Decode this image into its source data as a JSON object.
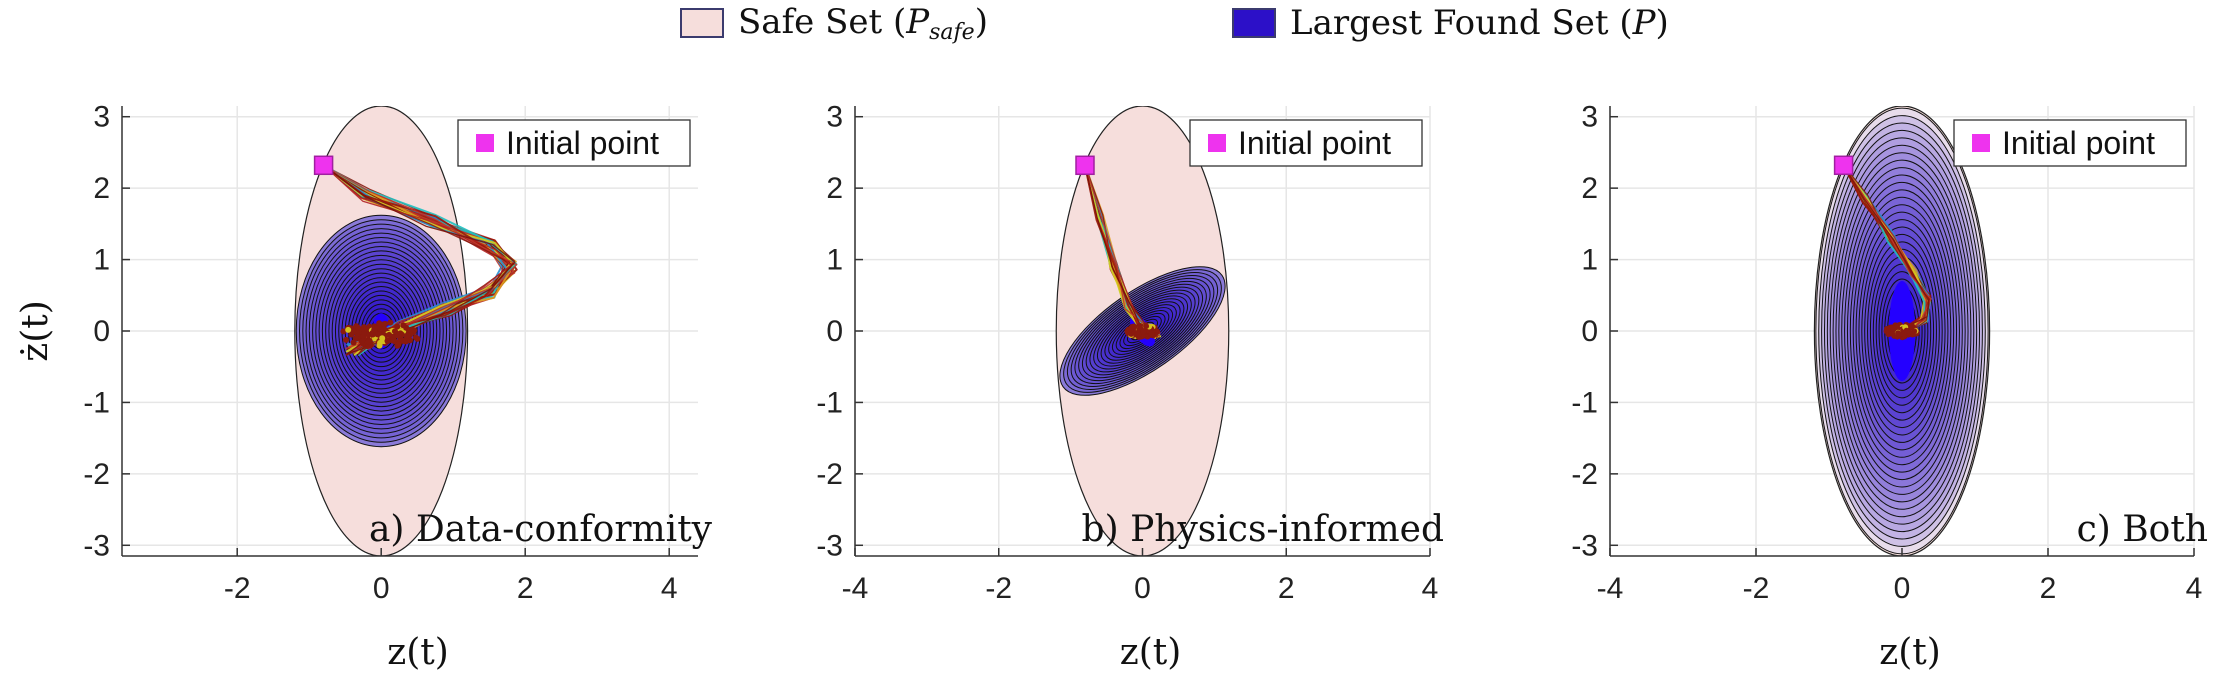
{
  "legend": {
    "safe_set_label": "Safe Set",
    "safe_set_symbol": "P",
    "safe_set_subscript": "safe",
    "found_set_label": "Largest Found Set",
    "found_set_symbol": "P",
    "safe_color": "#f6dedc",
    "found_color": "#2c10c8"
  },
  "chart_data": [
    {
      "type": "scatter",
      "panel_label": "a) Data-conformity",
      "xlabel": "z(t)",
      "ylabel": "ż(t)",
      "xlim": [
        -3.6,
        4.4
      ],
      "ylim": [
        -3.15,
        3.15
      ],
      "xticks": [
        -2,
        0,
        2,
        4
      ],
      "yticks": [
        -3,
        -2,
        -1,
        0,
        1,
        2,
        3
      ],
      "grid": true,
      "legend_position": "top-right",
      "legend_entry": "Initial point",
      "initial_point": [
        -0.8,
        2.32
      ],
      "safe_set": {
        "center": [
          0,
          0
        ],
        "rx": 1.2,
        "ry": 3.15,
        "tilt_deg": 0
      },
      "found_set": {
        "center": [
          0,
          0
        ],
        "rx": 1.18,
        "ry": 1.62,
        "tilt_deg": 0,
        "level_sets": 26
      },
      "trajectory": [
        [
          -0.8,
          2.32
        ],
        [
          -0.2,
          1.9
        ],
        [
          0.7,
          1.55
        ],
        [
          1.5,
          1.2
        ],
        [
          1.8,
          0.9
        ],
        [
          1.5,
          0.55
        ],
        [
          0.9,
          0.3
        ],
        [
          0.3,
          0.05
        ],
        [
          -0.2,
          -0.15
        ],
        [
          -0.4,
          -0.25
        ],
        [
          0.0,
          -0.05
        ]
      ]
    },
    {
      "type": "scatter",
      "panel_label": "b) Physics-informed",
      "xlabel": "z(t)",
      "ylabel": "",
      "xlim": [
        -4,
        4
      ],
      "ylim": [
        -3.15,
        3.15
      ],
      "xticks": [
        -4,
        -2,
        0,
        2,
        4
      ],
      "yticks": [
        -3,
        -2,
        -1,
        0,
        1,
        2,
        3
      ],
      "grid": true,
      "legend_position": "top-right",
      "legend_entry": "Initial point",
      "initial_point": [
        -0.8,
        2.32
      ],
      "safe_set": {
        "center": [
          0,
          0
        ],
        "rx": 1.2,
        "ry": 3.15,
        "tilt_deg": 0
      },
      "found_set": {
        "center": [
          0,
          0
        ],
        "rx": 1.35,
        "ry": 0.55,
        "tilt_deg": 35,
        "level_sets": 22
      },
      "trajectory": [
        [
          -0.8,
          2.32
        ],
        [
          -0.6,
          1.6
        ],
        [
          -0.4,
          0.9
        ],
        [
          -0.2,
          0.35
        ],
        [
          0.0,
          0.05
        ],
        [
          0.2,
          -0.05
        ],
        [
          0.0,
          0.0
        ]
      ]
    },
    {
      "type": "scatter",
      "panel_label": "c) Both",
      "xlabel": "z(t)",
      "ylabel": "",
      "xlim": [
        -4,
        4
      ],
      "ylim": [
        -3.15,
        3.15
      ],
      "xticks": [
        -4,
        -2,
        0,
        2,
        4
      ],
      "yticks": [
        -3,
        -2,
        -1,
        0,
        1,
        2,
        3
      ],
      "grid": true,
      "legend_position": "top-right",
      "legend_entry": "Initial point",
      "initial_point": [
        -0.8,
        2.32
      ],
      "safe_set": {
        "center": [
          0,
          0
        ],
        "rx": 1.2,
        "ry": 3.15,
        "tilt_deg": 0
      },
      "found_set": {
        "center": [
          0,
          0
        ],
        "rx": 1.18,
        "ry": 3.12,
        "tilt_deg": 0,
        "level_sets": 30
      },
      "trajectory": [
        [
          -0.8,
          2.32
        ],
        [
          -0.5,
          1.85
        ],
        [
          -0.15,
          1.3
        ],
        [
          0.15,
          0.8
        ],
        [
          0.35,
          0.45
        ],
        [
          0.3,
          0.15
        ],
        [
          0.05,
          0.0
        ],
        [
          -0.15,
          0.0
        ],
        [
          0.0,
          0.0
        ]
      ]
    }
  ]
}
